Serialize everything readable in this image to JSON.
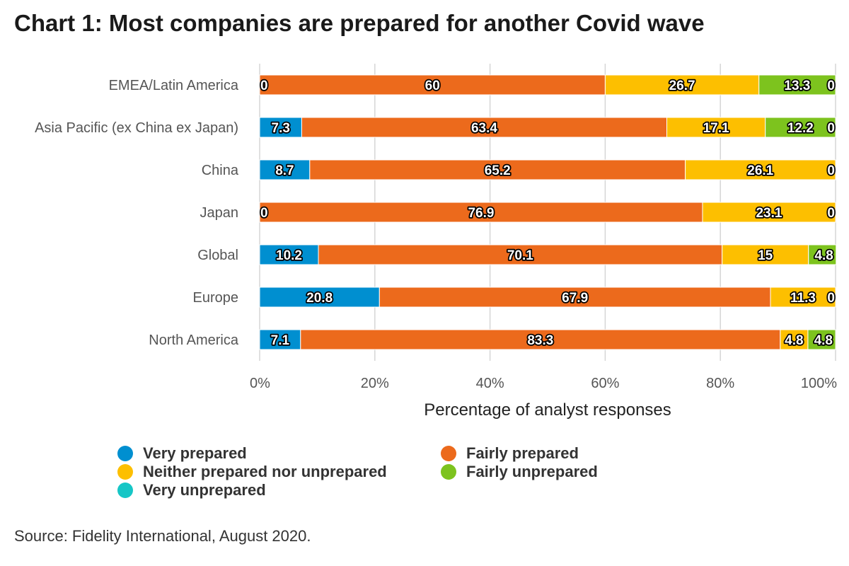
{
  "chart_data": {
    "type": "bar",
    "orientation": "horizontal",
    "stacked": true,
    "title": "Chart 1: Most companies are prepared for another Covid wave",
    "xlabel": "Percentage of analyst responses",
    "ylabel": "",
    "xlim": [
      0,
      100
    ],
    "x_ticks": [
      "0%",
      "20%",
      "40%",
      "60%",
      "80%",
      "100%"
    ],
    "grid": true,
    "legend_position": "bottom",
    "categories": [
      "EMEA/Latin America",
      "Asia Pacific (ex China ex Japan)",
      "China",
      "Japan",
      "Global",
      "Europe",
      "North America"
    ],
    "series": [
      {
        "name": "Very prepared",
        "color": "#008fd0",
        "values": [
          0,
          7.3,
          8.7,
          0,
          10.2,
          20.8,
          7.1
        ],
        "labels": [
          "0",
          "7.3",
          "8.7",
          "0",
          "10.2",
          "20.8",
          "7.1"
        ]
      },
      {
        "name": "Fairly prepared",
        "color": "#ec6a1c",
        "values": [
          60,
          63.4,
          65.2,
          76.9,
          70.1,
          67.9,
          83.3
        ],
        "labels": [
          "60",
          "63.4",
          "65.2",
          "76.9",
          "70.1",
          "67.9",
          "83.3"
        ]
      },
      {
        "name": "Neither prepared nor unprepared",
        "color": "#fdbf00",
        "values": [
          26.7,
          17.1,
          26.1,
          23.1,
          15,
          11.3,
          4.8
        ],
        "labels": [
          "26.7",
          "17.1",
          "26.1",
          "23.1",
          "15",
          "11.3",
          "4.8"
        ]
      },
      {
        "name": "Fairly unprepared",
        "color": "#7dc31e",
        "values": [
          13.3,
          12.2,
          0,
          0,
          4.8,
          0,
          4.8
        ],
        "labels": [
          "13.3",
          "12.2",
          "",
          "",
          "4.8",
          "",
          "4.8"
        ]
      },
      {
        "name": "Very unprepared",
        "color": "#16c6c6",
        "values": [
          0,
          0,
          0,
          0,
          0,
          0,
          0
        ],
        "labels": [
          "0",
          "0",
          "0",
          "0",
          "",
          "0",
          ""
        ]
      }
    ],
    "legend_order": [
      "Very prepared",
      "Fairly prepared",
      "Neither prepared nor unprepared",
      "Fairly unprepared",
      "Very unprepared"
    ]
  },
  "source": "Source: Fidelity International, August 2020."
}
